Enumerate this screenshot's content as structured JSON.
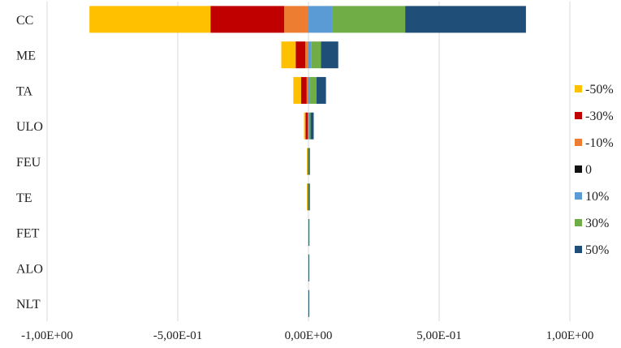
{
  "chart_data": {
    "type": "bar",
    "orientation": "horizontal",
    "stacked": "diverging",
    "categories": [
      "CC",
      "ME",
      "TA",
      "ULO",
      "FEU",
      "TE",
      "FET",
      "ALO",
      "NLT"
    ],
    "series": [
      {
        "name": "-50%",
        "color": "#FFC000",
        "values": [
          -0.463,
          -0.055,
          -0.03,
          -0.006,
          -0.0012,
          -0.0012,
          -0.0006,
          -0.0004,
          -0.0015
        ]
      },
      {
        "name": "-30%",
        "color": "#C00000",
        "values": [
          -0.282,
          -0.037,
          -0.021,
          -0.008,
          -0.003,
          -0.003,
          -0.0008,
          -0.0006,
          -0.0003
        ]
      },
      {
        "name": "-10%",
        "color": "#ED7D31",
        "values": [
          -0.093,
          -0.012,
          -0.007,
          -0.003,
          -0.0015,
          -0.0015,
          -0.0004,
          -0.0002,
          -0.0001
        ]
      },
      {
        "name": "0",
        "color": "#111111",
        "values": [
          0,
          0,
          0,
          0,
          0,
          0,
          0,
          0,
          0
        ]
      },
      {
        "name": "10%",
        "color": "#5B9BD5",
        "values": [
          0.093,
          0.01,
          0.006,
          0.002,
          0.0008,
          0.0008,
          0.0004,
          0.0002,
          0.0001
        ]
      },
      {
        "name": "30%",
        "color": "#70AD47",
        "values": [
          0.277,
          0.038,
          0.025,
          0.006,
          0.0015,
          0.0015,
          0.0008,
          0.0006,
          0.0002
        ]
      },
      {
        "name": "50%",
        "color": "#1F4E79",
        "values": [
          0.462,
          0.066,
          0.036,
          0.012,
          0.0032,
          0.0032,
          0.0015,
          0.001,
          0.0003
        ]
      }
    ],
    "xlim": [
      -1.0,
      1.0
    ],
    "xticks": [
      "-1,00E+00",
      "-5,00E-01",
      "0,00E+00",
      "5,00E-01",
      "1,00E+00"
    ],
    "xtick_values": [
      -1.0,
      -0.5,
      0.0,
      0.5,
      1.0
    ],
    "title": "",
    "xlabel": "",
    "ylabel": "",
    "grid": "vertical",
    "legend": {
      "placement": "right",
      "order": [
        "-50%",
        "-30%",
        "-10%",
        "0",
        "10%",
        "30%",
        "50%"
      ]
    }
  }
}
